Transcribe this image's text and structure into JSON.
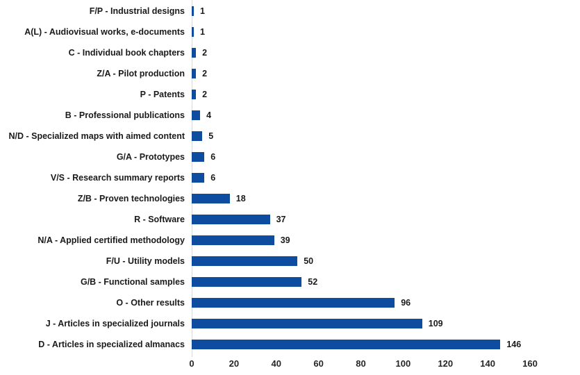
{
  "chart_data": {
    "type": "bar",
    "orientation": "horizontal",
    "title": "",
    "xlabel": "",
    "ylabel": "",
    "categories": [
      "F/P - Industrial designs",
      "A(L) - Audiovisual works, e-documents",
      "C - Individual book chapters",
      "Z/A - Pilot production",
      "P - Patents",
      "B - Professional publications",
      "N/D - Specialized maps with aimed content",
      "G/A - Prototypes",
      "V/S - Research summary reports",
      "Z/B - Proven technologies",
      "R - Software",
      "N/A - Applied certified methodology",
      "F/U - Utility models",
      "G/B - Functional samples",
      "O - Other results",
      "J - Articles in specialized journals",
      "D - Articles in specialized almanacs"
    ],
    "values": [
      1,
      1,
      2,
      2,
      2,
      4,
      5,
      6,
      6,
      18,
      37,
      39,
      50,
      52,
      96,
      109,
      146
    ],
    "xlim": [
      0,
      160
    ],
    "xticks": [
      0,
      20,
      40,
      60,
      80,
      100,
      120,
      140,
      160
    ],
    "data_labels": true,
    "grid": false,
    "legend": false,
    "bar_color": "#0d4c9f",
    "axis_line_color": "#d9d9d9",
    "label_color": "#1a1a1a",
    "tick_color": "#262626",
    "background_color": "#ffffff"
  }
}
